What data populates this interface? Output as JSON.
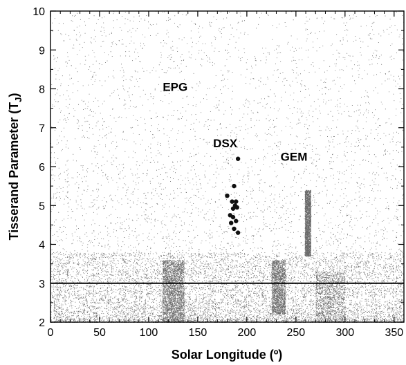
{
  "chart_data": {
    "type": "scatter",
    "xlabel": "Solar Longitude (º)",
    "ylabel": "Tisserand Parameter (T",
    "ylabel_sub": "J",
    "ylabel_close": ")",
    "xlim": [
      0,
      360
    ],
    "ylim": [
      2,
      10
    ],
    "x_ticks": [
      "0",
      "50",
      "100",
      "150",
      "200",
      "250",
      "300",
      "350"
    ],
    "y_ticks": [
      "2",
      "3",
      "4",
      "5",
      "6",
      "7",
      "8",
      "9",
      "10"
    ],
    "reference_line": {
      "y": 3.0
    },
    "annotations": [
      {
        "text": "EPG",
        "x": 127,
        "y": 7.95
      },
      {
        "text": "DSX",
        "x": 178,
        "y": 6.5
      },
      {
        "text": "GEM",
        "x": 248,
        "y": 6.15
      }
    ],
    "highlight_series": {
      "name": "",
      "points": [
        [
          191,
          6.2
        ],
        [
          187,
          5.5
        ],
        [
          180,
          5.25
        ],
        [
          185,
          5.1
        ],
        [
          189,
          5.1
        ],
        [
          188,
          5.0
        ],
        [
          186,
          4.92
        ],
        [
          190,
          4.95
        ],
        [
          183,
          4.75
        ],
        [
          186,
          4.7
        ],
        [
          189,
          4.6
        ],
        [
          184,
          4.55
        ],
        [
          187,
          4.4
        ],
        [
          191,
          4.3
        ]
      ]
    },
    "background_scatter": {
      "name": "",
      "description_density": [
        {
          "x_range": [
            0,
            360
          ],
          "y_range": [
            2,
            4.5
          ],
          "density": "high"
        },
        {
          "x_range": [
            0,
            360
          ],
          "y_range": [
            4.5,
            6.5
          ],
          "density": "medium"
        },
        {
          "x_range": [
            0,
            360
          ],
          "y_range": [
            6.5,
            10
          ],
          "density": "low"
        },
        {
          "x_center": 262,
          "y_range": [
            3.7,
            5.4
          ],
          "density": "very high"
        },
        {
          "x_center": 125,
          "y_range": [
            2,
            3.6
          ],
          "density": "very high"
        },
        {
          "x_center": 232,
          "y_range": [
            2.2,
            3.6
          ],
          "density": "very high"
        }
      ]
    },
    "grid": false,
    "legend": "none"
  }
}
